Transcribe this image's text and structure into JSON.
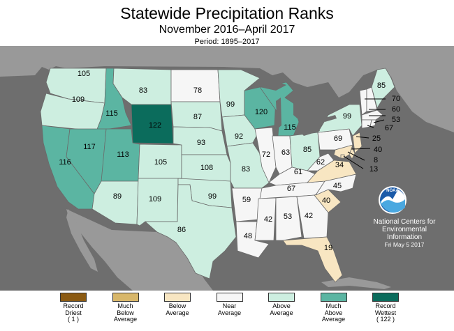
{
  "header": {
    "title": "Statewide Precipitation Ranks",
    "subtitle": "November 2016–April 2017",
    "period": "Period: 1895–2017"
  },
  "colors": {
    "record_driest": "#8b5a12",
    "much_below": "#d8b76a",
    "below": "#f8e6c2",
    "near": "#f6f6f6",
    "above": "#cdeee0",
    "much_above": "#5bb5a2",
    "record_wettest": "#0b6c5c",
    "background_land": "#999999",
    "ocean": "#6e6e6e"
  },
  "states": [
    {
      "id": "WA",
      "rank": "105",
      "cat": "above"
    },
    {
      "id": "OR",
      "rank": "109",
      "cat": "above"
    },
    {
      "id": "CA",
      "rank": "116",
      "cat": "much_above"
    },
    {
      "id": "ID",
      "rank": "115",
      "cat": "much_above"
    },
    {
      "id": "NV",
      "rank": "117",
      "cat": "much_above"
    },
    {
      "id": "MT",
      "rank": "83",
      "cat": "above"
    },
    {
      "id": "WY",
      "rank": "122",
      "cat": "record_wettest"
    },
    {
      "id": "UT",
      "rank": "113",
      "cat": "much_above"
    },
    {
      "id": "AZ",
      "rank": "89",
      "cat": "above"
    },
    {
      "id": "CO",
      "rank": "105",
      "cat": "above"
    },
    {
      "id": "NM",
      "rank": "109",
      "cat": "above"
    },
    {
      "id": "ND",
      "rank": "78",
      "cat": "near"
    },
    {
      "id": "SD",
      "rank": "87",
      "cat": "above"
    },
    {
      "id": "NE",
      "rank": "93",
      "cat": "above"
    },
    {
      "id": "KS",
      "rank": "108",
      "cat": "above"
    },
    {
      "id": "OK",
      "rank": "99",
      "cat": "above"
    },
    {
      "id": "TX",
      "rank": "86",
      "cat": "above"
    },
    {
      "id": "MN",
      "rank": "99",
      "cat": "above"
    },
    {
      "id": "IA",
      "rank": "92",
      "cat": "above"
    },
    {
      "id": "MO",
      "rank": "83",
      "cat": "above"
    },
    {
      "id": "AR",
      "rank": "59",
      "cat": "near"
    },
    {
      "id": "LA",
      "rank": "48",
      "cat": "near"
    },
    {
      "id": "WI",
      "rank": "120",
      "cat": "much_above"
    },
    {
      "id": "MI",
      "rank": "115",
      "cat": "much_above"
    },
    {
      "id": "IL",
      "rank": "72",
      "cat": "near"
    },
    {
      "id": "IN",
      "rank": "63",
      "cat": "near"
    },
    {
      "id": "OH",
      "rank": "85",
      "cat": "above"
    },
    {
      "id": "KY",
      "rank": "61",
      "cat": "near"
    },
    {
      "id": "TN",
      "rank": "67",
      "cat": "near"
    },
    {
      "id": "MS",
      "rank": "42",
      "cat": "near"
    },
    {
      "id": "AL",
      "rank": "53",
      "cat": "near"
    },
    {
      "id": "GA",
      "rank": "42",
      "cat": "near"
    },
    {
      "id": "FL",
      "rank": "19",
      "cat": "below"
    },
    {
      "id": "SC",
      "rank": "40",
      "cat": "below"
    },
    {
      "id": "NC",
      "rank": "45",
      "cat": "near"
    },
    {
      "id": "VA",
      "rank": "34",
      "cat": "below"
    },
    {
      "id": "WV",
      "rank": "62",
      "cat": "near"
    },
    {
      "id": "PA",
      "rank": "69",
      "cat": "near"
    },
    {
      "id": "NY",
      "rank": "99",
      "cat": "above"
    },
    {
      "id": "ME",
      "rank": "85",
      "cat": "above"
    },
    {
      "id": "NH",
      "rank": "70",
      "cat": "near"
    },
    {
      "id": "VT",
      "rank": "",
      "cat": "near"
    },
    {
      "id": "MA",
      "rank": "60",
      "cat": "near"
    },
    {
      "id": "RI",
      "rank": "53",
      "cat": "near"
    },
    {
      "id": "CT",
      "rank": "67",
      "cat": "near"
    },
    {
      "id": "NJ",
      "rank": "25",
      "cat": "below"
    },
    {
      "id": "DE",
      "rank": "40",
      "cat": "below"
    },
    {
      "id": "MD",
      "rank": "8",
      "cat": "below"
    },
    {
      "id": "DC",
      "rank": "13",
      "cat": "below"
    }
  ],
  "credit": {
    "line1": "National Centers for",
    "line2": "Environmental",
    "line3": "Information",
    "date": "Fri May  5 2017",
    "logo": "NOAA"
  },
  "legend": [
    {
      "cat": "record_driest",
      "line1": "Record",
      "line2": "Driest",
      "line3": "( 1 )"
    },
    {
      "cat": "much_below",
      "line1": "Much",
      "line2": "Below",
      "line3": "Average"
    },
    {
      "cat": "below",
      "line1": "Below",
      "line2": "Average",
      "line3": ""
    },
    {
      "cat": "near",
      "line1": "Near",
      "line2": "Average",
      "line3": ""
    },
    {
      "cat": "above",
      "line1": "Above",
      "line2": "Average",
      "line3": ""
    },
    {
      "cat": "much_above",
      "line1": "Much",
      "line2": "Above",
      "line3": "Average"
    },
    {
      "cat": "record_wettest",
      "line1": "Record",
      "line2": "Wettest",
      "line3": "( 122 )"
    }
  ]
}
